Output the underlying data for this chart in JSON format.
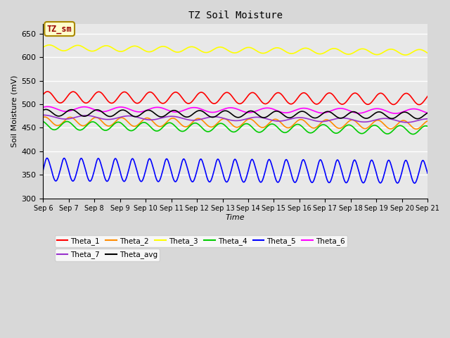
{
  "title": "TZ Soil Moisture",
  "xlabel": "Time",
  "ylabel": "Soil Moisture (mV)",
  "ylim": [
    300,
    670
  ],
  "yticks": [
    300,
    350,
    400,
    450,
    500,
    550,
    600,
    650
  ],
  "num_points": 1500,
  "series_order": [
    "Theta_1",
    "Theta_2",
    "Theta_3",
    "Theta_4",
    "Theta_5",
    "Theta_6",
    "Theta_7",
    "Theta_avg"
  ],
  "series": {
    "Theta_1": {
      "color": "#ff0000",
      "base": 515,
      "amp": 12,
      "freq": 1.0,
      "trend": -4,
      "phase": 0.5
    },
    "Theta_2": {
      "color": "#ff8c00",
      "base": 464,
      "amp": 9,
      "freq": 1.0,
      "trend": -8,
      "phase": 1.2
    },
    "Theta_3": {
      "color": "#ffff00",
      "base": 620,
      "amp": 6,
      "freq": 0.9,
      "trend": -10,
      "phase": 0.2
    },
    "Theta_4": {
      "color": "#00cc00",
      "base": 455,
      "amp": 9,
      "freq": 1.0,
      "trend": -10,
      "phase": 2.0
    },
    "Theta_5": {
      "color": "#0000ff",
      "base": 360,
      "amp": 18,
      "freq": 1.5,
      "trend": -5,
      "phase": 0.0
    },
    "Theta_6": {
      "color": "#ff00ff",
      "base": 490,
      "amp": 5,
      "freq": 0.7,
      "trend": -5,
      "phase": 0.8
    },
    "Theta_7": {
      "color": "#9933cc",
      "base": 473,
      "amp": 4,
      "freq": 0.6,
      "trend": -8,
      "phase": 1.5
    },
    "Theta_avg": {
      "color": "#000000",
      "base": 482,
      "amp": 7,
      "freq": 1.0,
      "trend": -6,
      "phase": 0.9
    }
  },
  "annotation_text": "TZ_sm",
  "annotation_color": "#990000",
  "annotation_bg": "#ffffcc",
  "annotation_border": "#aa8800",
  "background_color": "#d8d8d8",
  "plot_bg_color": "#e8e8e8",
  "grid_color": "#ffffff",
  "figwidth": 6.4,
  "figheight": 4.8,
  "dpi": 100
}
